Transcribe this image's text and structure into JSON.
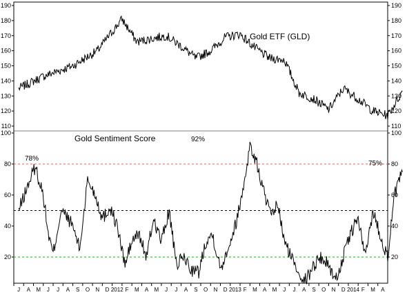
{
  "chart_data": [
    {
      "type": "line",
      "title": "Gold ETF (GLD)",
      "ylim": [
        110,
        190
      ],
      "yticks": [
        110,
        120,
        130,
        140,
        150,
        160,
        170,
        180,
        190
      ],
      "line_color": "#000000",
      "series": [
        {
          "name": "",
          "x": [
            0,
            2.5,
            5.5,
            8,
            10.5,
            12,
            13.5,
            15,
            16.5,
            18,
            19.5,
            21,
            22.5,
            24,
            25.5,
            27,
            28.5,
            30,
            31.5,
            33,
            34.5,
            36,
            37.5,
            39
          ],
          "y": [
            135,
            143,
            150,
            160,
            181,
            166,
            168,
            170,
            163,
            155,
            160,
            169,
            171,
            162,
            155,
            154,
            132,
            128,
            121,
            135,
            128,
            120,
            117,
            133
          ]
        }
      ]
    },
    {
      "type": "line",
      "title": "Gold Sentiment Score",
      "ylim": [
        0,
        100
      ],
      "yticks": [
        20,
        40,
        60,
        80,
        100
      ],
      "line_color": "#000000",
      "annotations": [
        "78%",
        "92%",
        "75%"
      ],
      "reference_lines": [
        {
          "value": 80,
          "color": "#e06060"
        },
        {
          "value": 50,
          "color": "#000000"
        },
        {
          "value": 20,
          "color": "#22aa22"
        }
      ],
      "series": [
        {
          "name": "",
          "x": [
            0,
            1.5,
            1.7,
            2.5,
            3,
            3.5,
            4.3,
            5,
            5.5,
            6.2,
            7,
            7.8,
            8.5,
            9.3,
            10,
            10.8,
            11.5,
            12.2,
            13,
            13.7,
            14.5,
            15.3,
            16,
            16.8,
            17.5,
            18.3,
            19,
            19.7,
            20.5,
            21.2,
            22,
            22.7,
            23.5,
            24.2,
            25,
            25.7,
            26.3,
            27,
            27.7,
            28.5,
            29.2,
            30,
            30.7,
            31.5,
            32.2,
            33,
            33.7,
            34.5,
            35.2,
            36,
            36.7,
            37.5,
            38.2,
            39
          ],
          "y": [
            50,
            76,
            78,
            60,
            35,
            22,
            50,
            45,
            40,
            25,
            70,
            60,
            45,
            52,
            40,
            15,
            30,
            35,
            20,
            45,
            30,
            50,
            15,
            20,
            12,
            10,
            30,
            35,
            12,
            25,
            40,
            60,
            92,
            80,
            60,
            45,
            55,
            30,
            20,
            10,
            5,
            15,
            20,
            15,
            5,
            20,
            35,
            45,
            20,
            50,
            35,
            20,
            60,
            75
          ]
        }
      ]
    }
  ],
  "x_axis": {
    "tick_labels": [
      "J",
      "A",
      "M",
      "J",
      "J",
      "A",
      "S",
      "O",
      "N",
      "D",
      "2012",
      "F",
      "M",
      "A",
      "M",
      "J",
      "J",
      "A",
      "S",
      "O",
      "N",
      "D",
      "2013",
      "F",
      "M",
      "A",
      "M",
      "J",
      "J",
      "A",
      "S",
      "O",
      "N",
      "D",
      "2014",
      "F",
      "M",
      "A"
    ]
  }
}
